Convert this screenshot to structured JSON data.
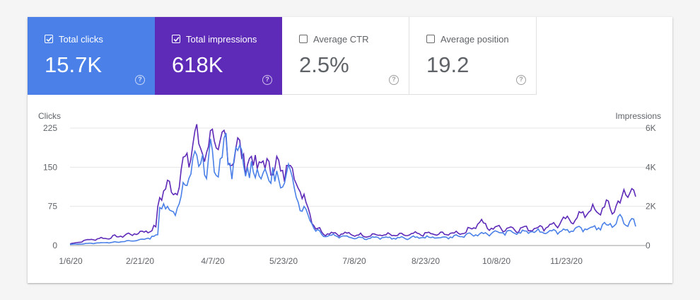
{
  "metrics": [
    {
      "id": "clicks",
      "label": "Total clicks",
      "value": "15.7K",
      "checked": true
    },
    {
      "id": "impressions",
      "label": "Total impressions",
      "value": "618K",
      "checked": true
    },
    {
      "id": "ctr",
      "label": "Average CTR",
      "value": "2.5%",
      "checked": false
    },
    {
      "id": "position",
      "label": "Average position",
      "value": "19.2",
      "checked": false
    }
  ],
  "help_glyph": "?",
  "colors": {
    "clicks": "#4a80e8",
    "impressions": "#5e2ab8",
    "grid": "#e6e6e6",
    "axis": "#9e9e9e"
  },
  "chart_data": {
    "type": "line",
    "y_left": {
      "label": "Clicks",
      "ticks": [
        "0",
        "75",
        "150",
        "225"
      ],
      "range": [
        0,
        225
      ]
    },
    "y_right": {
      "label": "Impressions",
      "ticks": [
        "0",
        "2K",
        "4K",
        "6K"
      ],
      "range": [
        0,
        6000
      ]
    },
    "x_ticks": [
      "1/6/20",
      "2/21/20",
      "4/7/20",
      "5/23/20",
      "7/8/20",
      "8/23/20",
      "10/8/20",
      "11/23/20"
    ],
    "x_range": [
      "1/6/20",
      "1/21/21"
    ],
    "grid": true,
    "series": [
      {
        "name": "Total clicks",
        "axis": "left",
        "color": "#4a80e8",
        "anchors": [
          [
            0,
            2
          ],
          [
            10,
            4
          ],
          [
            20,
            6
          ],
          [
            30,
            8
          ],
          [
            38,
            12
          ],
          [
            45,
            20
          ],
          [
            46,
            70
          ],
          [
            48,
            85
          ],
          [
            52,
            60
          ],
          [
            56,
            85
          ],
          [
            60,
            120
          ],
          [
            64,
            170
          ],
          [
            66,
            150
          ],
          [
            68,
            180
          ],
          [
            70,
            120
          ],
          [
            72,
            175
          ],
          [
            76,
            145
          ],
          [
            80,
            188
          ],
          [
            84,
            150
          ],
          [
            88,
            180
          ],
          [
            92,
            130
          ],
          [
            96,
            160
          ],
          [
            100,
            120
          ],
          [
            104,
            150
          ],
          [
            108,
            100
          ],
          [
            112,
            150
          ],
          [
            116,
            105
          ],
          [
            118,
            80
          ],
          [
            120,
            65
          ],
          [
            123,
            55
          ],
          [
            126,
            30
          ],
          [
            130,
            20
          ],
          [
            140,
            18
          ],
          [
            150,
            14
          ],
          [
            160,
            15
          ],
          [
            170,
            14
          ],
          [
            180,
            16
          ],
          [
            190,
            15
          ],
          [
            200,
            18
          ],
          [
            205,
            20
          ],
          [
            210,
            22
          ],
          [
            220,
            25
          ],
          [
            230,
            25
          ],
          [
            240,
            27
          ],
          [
            250,
            28
          ],
          [
            260,
            30
          ],
          [
            270,
            35
          ],
          [
            275,
            38
          ],
          [
            280,
            45
          ],
          [
            283,
            55
          ],
          [
            285,
            42
          ],
          [
            288,
            45
          ],
          [
            290,
            38
          ]
        ]
      },
      {
        "name": "Total impressions",
        "axis": "right",
        "color": "#5e2ab8",
        "anchors": [
          [
            0,
            80
          ],
          [
            10,
            300
          ],
          [
            20,
            400
          ],
          [
            30,
            550
          ],
          [
            38,
            700
          ],
          [
            44,
            900
          ],
          [
            46,
            2600
          ],
          [
            48,
            3000
          ],
          [
            52,
            2800
          ],
          [
            56,
            3300
          ],
          [
            60,
            4500
          ],
          [
            64,
            5400
          ],
          [
            66,
            5000
          ],
          [
            68,
            5600
          ],
          [
            70,
            4500
          ],
          [
            72,
            5500
          ],
          [
            76,
            4900
          ],
          [
            80,
            5200
          ],
          [
            84,
            4500
          ],
          [
            88,
            5000
          ],
          [
            92,
            4000
          ],
          [
            96,
            4500
          ],
          [
            100,
            3800
          ],
          [
            104,
            4500
          ],
          [
            108,
            3500
          ],
          [
            112,
            4400
          ],
          [
            116,
            3300
          ],
          [
            118,
            2800
          ],
          [
            120,
            2400
          ],
          [
            123,
            1700
          ],
          [
            126,
            900
          ],
          [
            130,
            650
          ],
          [
            140,
            600
          ],
          [
            150,
            520
          ],
          [
            160,
            550
          ],
          [
            170,
            520
          ],
          [
            180,
            600
          ],
          [
            190,
            580
          ],
          [
            200,
            650
          ],
          [
            205,
            800
          ],
          [
            210,
            1250
          ],
          [
            214,
            900
          ],
          [
            220,
            900
          ],
          [
            230,
            850
          ],
          [
            240,
            900
          ],
          [
            250,
            1100
          ],
          [
            255,
            1300
          ],
          [
            260,
            1400
          ],
          [
            265,
            1800
          ],
          [
            270,
            1700
          ],
          [
            275,
            2000
          ],
          [
            278,
            1900
          ],
          [
            282,
            2100
          ],
          [
            284,
            2800
          ],
          [
            286,
            2700
          ],
          [
            288,
            2600
          ]
        ]
      }
    ]
  }
}
